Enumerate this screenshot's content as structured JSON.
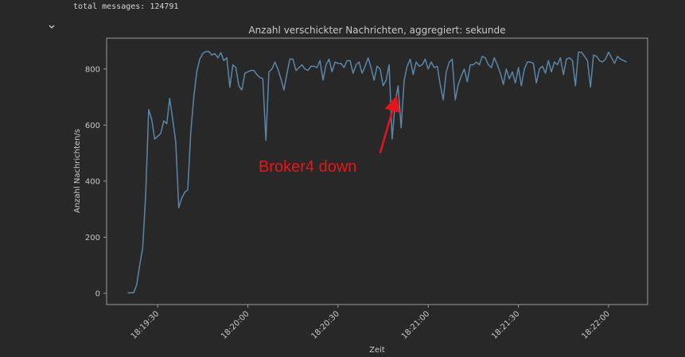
{
  "output": {
    "total_messages": "total messages: 124791"
  },
  "icons": {
    "collapse": "chevron-down-icon"
  },
  "colors": {
    "background": "#282828",
    "series": "#5b86a8",
    "axis": "#9a9a9a",
    "annotation": "#e8141b"
  },
  "chart_data": {
    "type": "line",
    "title": "Anzahl verschickter Nachrichten, aggregiert: sekunde",
    "xlabel": "Zeit",
    "ylabel": "Anzahl Nachrichten/s",
    "xlim": [
      "18:19:13",
      "18:22:13"
    ],
    "ylim": [
      -40,
      910
    ],
    "yticks": [
      0,
      200,
      400,
      600,
      800
    ],
    "yticklabels": [
      "0",
      "200",
      "400",
      "600",
      "800"
    ],
    "xticks": [
      "18:19:30",
      "18:20:00",
      "18:20:30",
      "18:21:00",
      "18:21:30",
      "18:22:00"
    ],
    "xticklabels": [
      "18:19:30",
      "18:20:00",
      "18:20:30",
      "18:21:00",
      "18:21:30",
      "18:22:00"
    ],
    "grid": false,
    "legend": "none",
    "series": [
      {
        "x": [
          "18:19:20",
          "18:19:21",
          "18:19:22",
          "18:19:23",
          "18:19:24",
          "18:19:25",
          "18:19:26",
          "18:19:27",
          "18:19:28",
          "18:19:29",
          "18:19:30",
          "18:19:31",
          "18:19:32",
          "18:19:33",
          "18:19:34",
          "18:19:35",
          "18:19:36",
          "18:19:37",
          "18:19:38",
          "18:19:39",
          "18:19:40",
          "18:19:41",
          "18:19:42",
          "18:19:43",
          "18:19:44",
          "18:19:45",
          "18:19:46",
          "18:19:47",
          "18:19:48",
          "18:19:49",
          "18:19:50",
          "18:19:51",
          "18:19:52",
          "18:19:53",
          "18:19:54",
          "18:19:55",
          "18:19:56",
          "18:19:57",
          "18:19:58",
          "18:19:59",
          "18:20:00",
          "18:20:01",
          "18:20:02",
          "18:20:03",
          "18:20:04",
          "18:20:05",
          "18:20:06",
          "18:20:07",
          "18:20:08",
          "18:20:09",
          "18:20:10",
          "18:20:11",
          "18:20:12",
          "18:20:13",
          "18:20:14",
          "18:20:15",
          "18:20:16",
          "18:20:17",
          "18:20:18",
          "18:20:19",
          "18:20:20",
          "18:20:21",
          "18:20:22",
          "18:20:23",
          "18:20:24",
          "18:20:25",
          "18:20:26",
          "18:20:27",
          "18:20:28",
          "18:20:29",
          "18:20:30",
          "18:20:31",
          "18:20:32",
          "18:20:33",
          "18:20:34",
          "18:20:35",
          "18:20:36",
          "18:20:37",
          "18:20:38",
          "18:20:39",
          "18:20:40",
          "18:20:41",
          "18:20:42",
          "18:20:43",
          "18:20:44",
          "18:20:45",
          "18:20:46",
          "18:20:47",
          "18:20:48",
          "18:20:49",
          "18:20:50",
          "18:20:51",
          "18:20:52",
          "18:20:53",
          "18:20:54",
          "18:20:55",
          "18:20:56",
          "18:20:57",
          "18:20:58",
          "18:20:59",
          "18:21:00",
          "18:21:01",
          "18:21:02",
          "18:21:03",
          "18:21:04",
          "18:21:05",
          "18:21:06",
          "18:21:07",
          "18:21:08",
          "18:21:09",
          "18:21:10",
          "18:21:11",
          "18:21:12",
          "18:21:13",
          "18:21:14",
          "18:21:15",
          "18:21:16",
          "18:21:17",
          "18:21:18",
          "18:21:19",
          "18:21:20",
          "18:21:21",
          "18:21:22",
          "18:21:23",
          "18:21:24",
          "18:21:25",
          "18:21:26",
          "18:21:27",
          "18:21:28",
          "18:21:29",
          "18:21:30",
          "18:21:31",
          "18:21:32",
          "18:21:33",
          "18:21:34",
          "18:21:35",
          "18:21:36",
          "18:21:37",
          "18:21:38",
          "18:21:39",
          "18:21:40",
          "18:21:41",
          "18:21:42",
          "18:21:43",
          "18:21:44",
          "18:21:45",
          "18:21:46",
          "18:21:47",
          "18:21:48",
          "18:21:49",
          "18:21:50",
          "18:21:51",
          "18:21:52",
          "18:21:53",
          "18:21:54",
          "18:21:55",
          "18:21:56",
          "18:21:57",
          "18:21:58",
          "18:21:59",
          "18:22:00",
          "18:22:01",
          "18:22:02",
          "18:22:03",
          "18:22:04",
          "18:22:05",
          "18:22:06"
        ],
        "y": [
          2,
          2,
          2,
          30,
          100,
          160,
          350,
          655,
          620,
          550,
          560,
          570,
          615,
          605,
          695,
          620,
          540,
          305,
          340,
          360,
          370,
          575,
          700,
          790,
          835,
          855,
          862,
          863,
          850,
          855,
          840,
          858,
          830,
          840,
          735,
          815,
          805,
          740,
          725,
          785,
          790,
          795,
          795,
          780,
          770,
          765,
          545,
          790,
          800,
          825,
          800,
          765,
          725,
          785,
          835,
          835,
          795,
          805,
          815,
          800,
          795,
          810,
          810,
          805,
          830,
          760,
          815,
          835,
          790,
          825,
          820,
          820,
          805,
          830,
          830,
          785,
          815,
          825,
          785,
          810,
          840,
          805,
          760,
          810,
          800,
          740,
          760,
          815,
          550,
          680,
          740,
          590,
          760,
          810,
          835,
          780,
          825,
          810,
          815,
          835,
          800,
          825,
          805,
          810,
          745,
          690,
          790,
          825,
          835,
          690,
          745,
          775,
          800,
          755,
          815,
          815,
          825,
          815,
          845,
          840,
          815,
          805,
          840,
          815,
          785,
          745,
          800,
          765,
          790,
          750,
          805,
          740,
          800,
          825,
          825,
          820,
          750,
          800,
          810,
          785,
          830,
          790,
          825,
          815,
          840,
          780,
          835,
          840,
          830,
          740,
          860,
          860,
          845,
          830,
          735,
          850,
          845,
          830,
          825,
          835,
          860,
          840,
          820,
          845,
          835,
          830,
          825
        ]
      }
    ],
    "annotations": [
      {
        "text": "Broker4 down",
        "arrow_tail": [
          "18:20:44",
          500
        ],
        "arrow_head": [
          "18:20:49",
          685
        ]
      }
    ]
  }
}
